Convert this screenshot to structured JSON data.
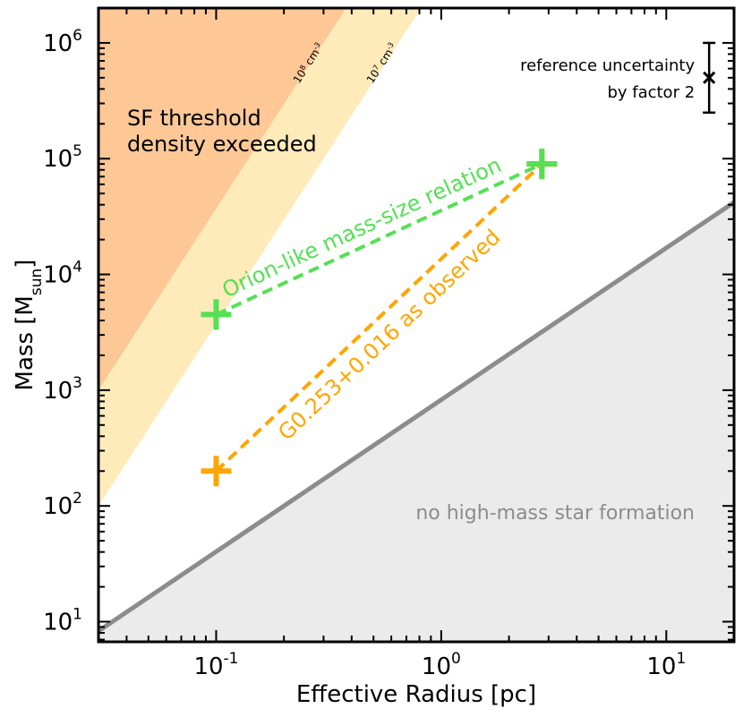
{
  "chart_data": {
    "type": "line",
    "title": "",
    "xlabel": "Effective Radius  [pc]",
    "ylabel_main": "Mass  [M",
    "ylabel_sub": "sun",
    "ylabel_close": "]",
    "x_scale": "log",
    "y_scale": "log",
    "xlim": [
      0.03,
      20
    ],
    "ylim": [
      6.7,
      2000000
    ],
    "grid": false,
    "x_ticks": [
      {
        "value": 0.1,
        "base": "10",
        "exp": "-1"
      },
      {
        "value": 1,
        "base": "10",
        "exp": "0"
      },
      {
        "value": 10,
        "base": "10",
        "exp": "1"
      }
    ],
    "y_ticks": [
      {
        "value": 10,
        "base": "10",
        "exp": "1"
      },
      {
        "value": 100,
        "base": "10",
        "exp": "2"
      },
      {
        "value": 1000,
        "base": "10",
        "exp": "3"
      },
      {
        "value": 10000,
        "base": "10",
        "exp": "4"
      },
      {
        "value": 100000,
        "base": "10",
        "exp": "5"
      },
      {
        "value": 1000000,
        "base": "10",
        "exp": "6"
      }
    ],
    "series": [
      {
        "name": "Orion-like mass-size relation",
        "style": "dashed",
        "color": "#55e055",
        "points": [
          [
            0.1,
            4500
          ],
          [
            2.8,
            90000
          ]
        ]
      },
      {
        "name": "G0.253+0.016 as observed",
        "style": "dashed",
        "color": "#ffa500",
        "points": [
          [
            0.1,
            200
          ],
          [
            2.8,
            90000
          ]
        ]
      }
    ],
    "threshold_line": {
      "color": "#8c8c8c",
      "points": [
        [
          0.03,
          8.3
        ],
        [
          20,
          42000
        ]
      ],
      "region_label": "no high-mass star formation",
      "region_color": "#ebebeb",
      "label_color": "#8c8c8c"
    },
    "density_bands": [
      {
        "label_base": "10",
        "label_exp": "8",
        "label_unit": " cm",
        "label_unit_exp": "-3",
        "color": "#fdc896",
        "slope": 3,
        "anchor_x": 0.03,
        "anchor_y": 1000
      },
      {
        "label_base": "10",
        "label_exp": "7",
        "label_unit": " cm",
        "label_unit_exp": "-3",
        "color": "#feebb9",
        "slope": 3,
        "anchor_x": 0.03,
        "anchor_y": 100
      }
    ],
    "region_text_lines": [
      "SF threshold",
      "density exceeded"
    ],
    "reference_error": {
      "label_lines": [
        "reference uncertainty",
        "by factor 2"
      ],
      "x": 15.5,
      "y": 500000,
      "factor": 2
    }
  }
}
